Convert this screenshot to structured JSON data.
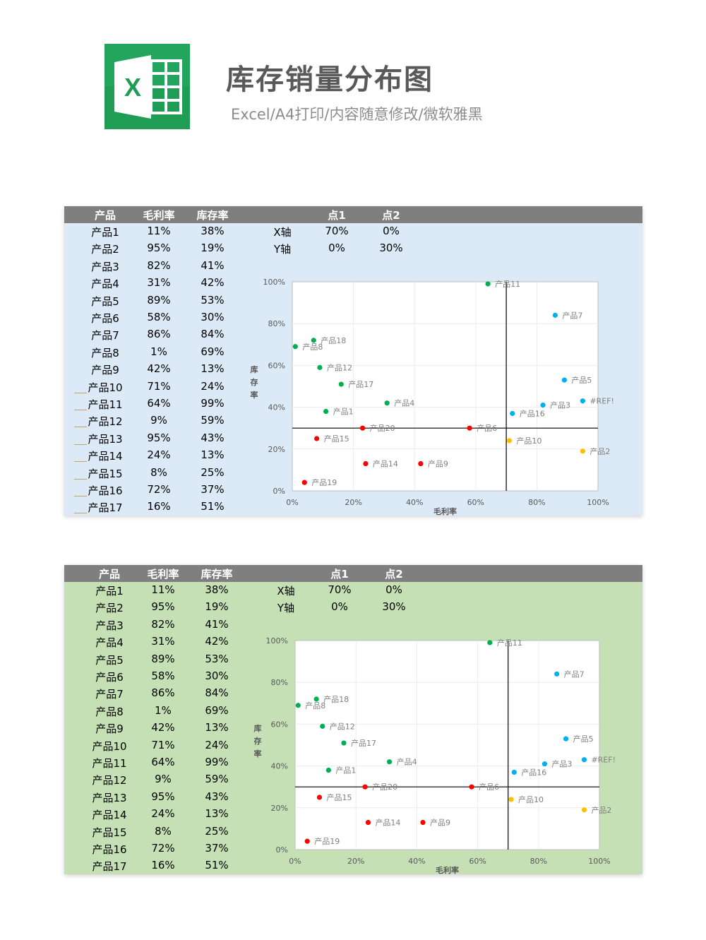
{
  "header": {
    "title": "库存销量分布图",
    "subtitle": "Excel/A4打印/内容随意修改/微软雅黑",
    "logo_letter": "X"
  },
  "colors": {
    "blue_sheet": "#dce9f7",
    "green_sheet": "#c5e0b4",
    "header_bar": "#7f7f7f",
    "excel_green": "#1f9d55"
  },
  "table": {
    "headers": [
      "产品",
      "毛利率",
      "库存率",
      "点1",
      "点2"
    ],
    "rows": [
      {
        "name": "产品1",
        "margin": "11%",
        "stock": "38%"
      },
      {
        "name": "产品2",
        "margin": "95%",
        "stock": "19%"
      },
      {
        "name": "产品3",
        "margin": "82%",
        "stock": "41%"
      },
      {
        "name": "产品4",
        "margin": "31%",
        "stock": "42%"
      },
      {
        "name": "产品5",
        "margin": "89%",
        "stock": "53%"
      },
      {
        "name": "产品6",
        "margin": "58%",
        "stock": "30%"
      },
      {
        "name": "产品7",
        "margin": "86%",
        "stock": "84%"
      },
      {
        "name": "产品8",
        "margin": "1%",
        "stock": "69%"
      },
      {
        "name": "产品9",
        "margin": "42%",
        "stock": "13%"
      },
      {
        "name": "产品10",
        "margin": "71%",
        "stock": "24%"
      },
      {
        "name": "产品11",
        "margin": "64%",
        "stock": "99%"
      },
      {
        "name": "产品12",
        "margin": "9%",
        "stock": "59%"
      },
      {
        "name": "产品13",
        "margin": "95%",
        "stock": "43%"
      },
      {
        "name": "产品14",
        "margin": "24%",
        "stock": "13%"
      },
      {
        "name": "产品15",
        "margin": "8%",
        "stock": "25%"
      },
      {
        "name": "产品16",
        "margin": "72%",
        "stock": "37%"
      },
      {
        "name": "产品17",
        "margin": "16%",
        "stock": "51%"
      }
    ],
    "points": [
      {
        "axis": "X轴",
        "p1": "70%",
        "p2": "0%"
      },
      {
        "axis": "Y轴",
        "p1": "0%",
        "p2": "30%"
      }
    ]
  },
  "chart_data": {
    "type": "scatter",
    "xlabel": "毛利率",
    "ylabel": "库存率",
    "xlim": [
      0,
      100
    ],
    "ylim": [
      0,
      100
    ],
    "xticks": [
      "0%",
      "20%",
      "40%",
      "60%",
      "80%",
      "100%"
    ],
    "yticks": [
      "0%",
      "20%",
      "40%",
      "60%",
      "80%",
      "100%"
    ],
    "grid": true,
    "divider": {
      "x": 70,
      "y": 30
    },
    "points": [
      {
        "label": "产品11",
        "x": 64,
        "y": 99,
        "color": "#00b050"
      },
      {
        "label": "产品7",
        "x": 86,
        "y": 84,
        "color": "#00b0f0"
      },
      {
        "label": "产品18",
        "x": 7,
        "y": 72,
        "color": "#00b050"
      },
      {
        "label": "产品8",
        "x": 1,
        "y": 69,
        "color": "#00b050"
      },
      {
        "label": "产品12",
        "x": 9,
        "y": 59,
        "color": "#00b050"
      },
      {
        "label": "产品17",
        "x": 16,
        "y": 51,
        "color": "#00b050"
      },
      {
        "label": "产品5",
        "x": 89,
        "y": 53,
        "color": "#00b0f0"
      },
      {
        "label": "产品4",
        "x": 31,
        "y": 42,
        "color": "#00b050"
      },
      {
        "label": "#REF!",
        "x": 95,
        "y": 43,
        "color": "#00b0f0"
      },
      {
        "label": "产品3",
        "x": 82,
        "y": 41,
        "color": "#00b0f0"
      },
      {
        "label": "产品1",
        "x": 11,
        "y": 38,
        "color": "#00b050"
      },
      {
        "label": "产品16",
        "x": 72,
        "y": 37,
        "color": "#00b0f0"
      },
      {
        "label": "产品20",
        "x": 23,
        "y": 30,
        "color": "#ff0000"
      },
      {
        "label": "产品6",
        "x": 58,
        "y": 30,
        "color": "#ff0000"
      },
      {
        "label": "产品15",
        "x": 8,
        "y": 25,
        "color": "#ff0000"
      },
      {
        "label": "产品10",
        "x": 71,
        "y": 24,
        "color": "#ffc000"
      },
      {
        "label": "产品2",
        "x": 95,
        "y": 19,
        "color": "#ffc000"
      },
      {
        "label": "产品14",
        "x": 24,
        "y": 13,
        "color": "#ff0000"
      },
      {
        "label": "产品9",
        "x": 42,
        "y": 13,
        "color": "#ff0000"
      },
      {
        "label": "产品19",
        "x": 4,
        "y": 4,
        "color": "#ff0000"
      }
    ]
  }
}
